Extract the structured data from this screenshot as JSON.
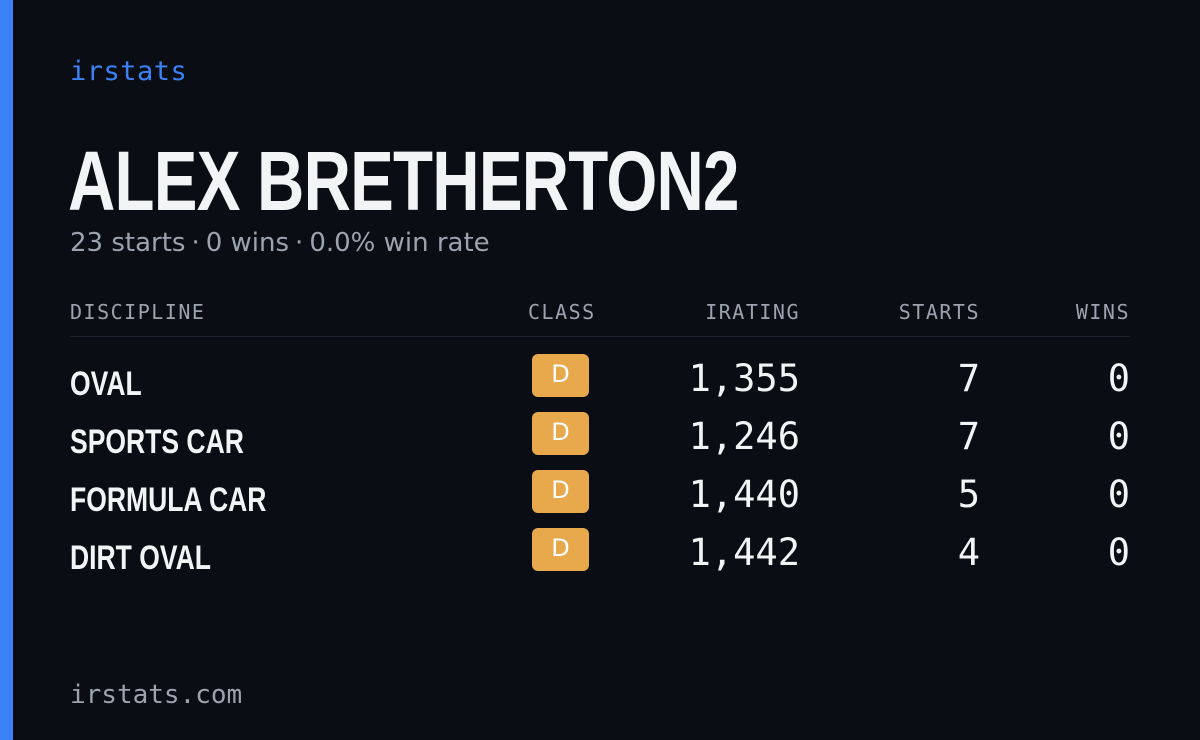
{
  "brand": "irstats",
  "driver": {
    "name": "ALEX BRETHERTON2"
  },
  "summary": {
    "starts": "23 starts",
    "wins": "0 wins",
    "win_rate": "0.0% win rate",
    "separator": "·"
  },
  "table": {
    "headers": {
      "discipline": "DISCIPLINE",
      "class": "CLASS",
      "irating": "IRATING",
      "starts": "STARTS",
      "wins": "WINS"
    },
    "rows": [
      {
        "discipline": "OVAL",
        "class": "D",
        "irating": "1,355",
        "starts": "7",
        "wins": "0"
      },
      {
        "discipline": "SPORTS CAR",
        "class": "D",
        "irating": "1,246",
        "starts": "7",
        "wins": "0"
      },
      {
        "discipline": "FORMULA CAR",
        "class": "D",
        "irating": "1,440",
        "starts": "5",
        "wins": "0"
      },
      {
        "discipline": "DIRT OVAL",
        "class": "D",
        "irating": "1,442",
        "starts": "4",
        "wins": "0"
      }
    ]
  },
  "footer": {
    "url": "irstats.com"
  },
  "colors": {
    "accent": "#3b82f6",
    "background": "#0a0d14",
    "class_badge": "#e8a84c",
    "muted_text": "#9ca3af"
  }
}
